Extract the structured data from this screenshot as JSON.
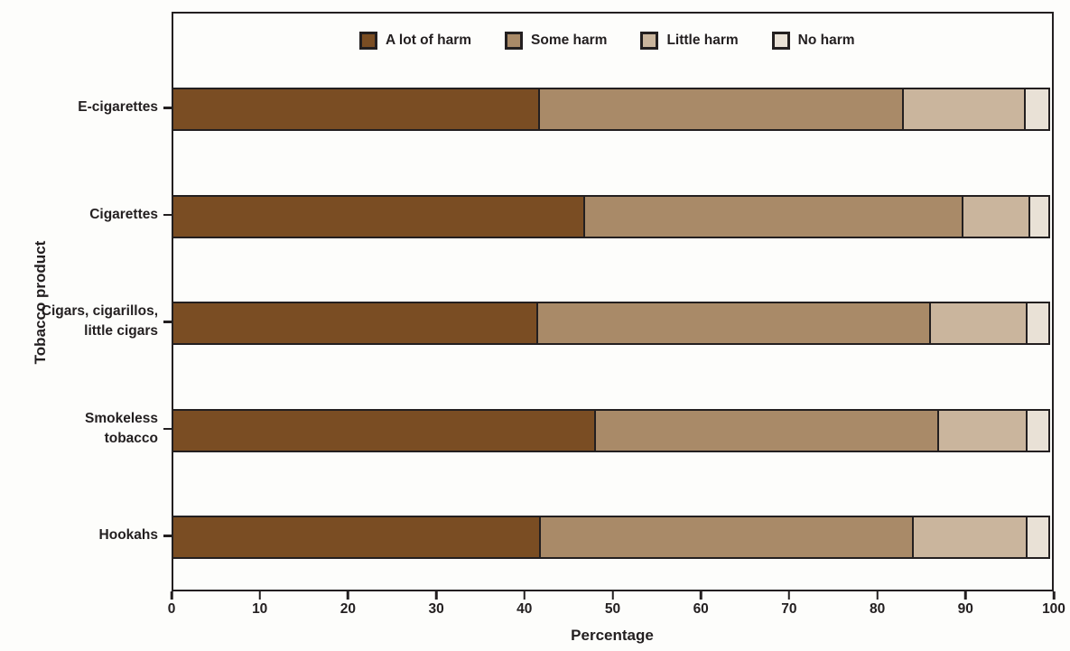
{
  "chart_data": {
    "type": "bar",
    "orientation": "horizontal",
    "stacked": true,
    "title": "",
    "xlabel": "Percentage",
    "ylabel": "Tobacco product",
    "xlim": [
      0,
      100
    ],
    "x_ticks": [
      0,
      10,
      20,
      30,
      40,
      50,
      60,
      70,
      80,
      90,
      100
    ],
    "grid": false,
    "legend_position": "top-inside",
    "frame": true,
    "categories": [
      "E-cigarettes",
      "Cigarettes",
      "Cigars, cigarillos,\nlittle cigars",
      "Smokeless\ntobacco",
      "Hookahs"
    ],
    "series": [
      {
        "name": "A lot of harm",
        "color": "#7a4d23",
        "values": [
          41.7,
          46.9,
          41.5,
          48.1,
          41.8
        ]
      },
      {
        "name": "Some harm",
        "color": "#a98a68",
        "values": [
          41.6,
          43.2,
          44.9,
          39.2,
          42.6
        ]
      },
      {
        "name": "Little harm",
        "color": "#cab59d",
        "values": [
          13.9,
          7.6,
          11.0,
          10.1,
          13.0
        ]
      },
      {
        "name": "No harm",
        "color": "#e9e1d6",
        "values": [
          2.8,
          2.3,
          2.6,
          2.6,
          2.6
        ]
      }
    ]
  },
  "colors": {
    "text": "#231f20",
    "axis": "#231f20",
    "background": "#fdfdfb",
    "bar_border": "#231f20"
  }
}
